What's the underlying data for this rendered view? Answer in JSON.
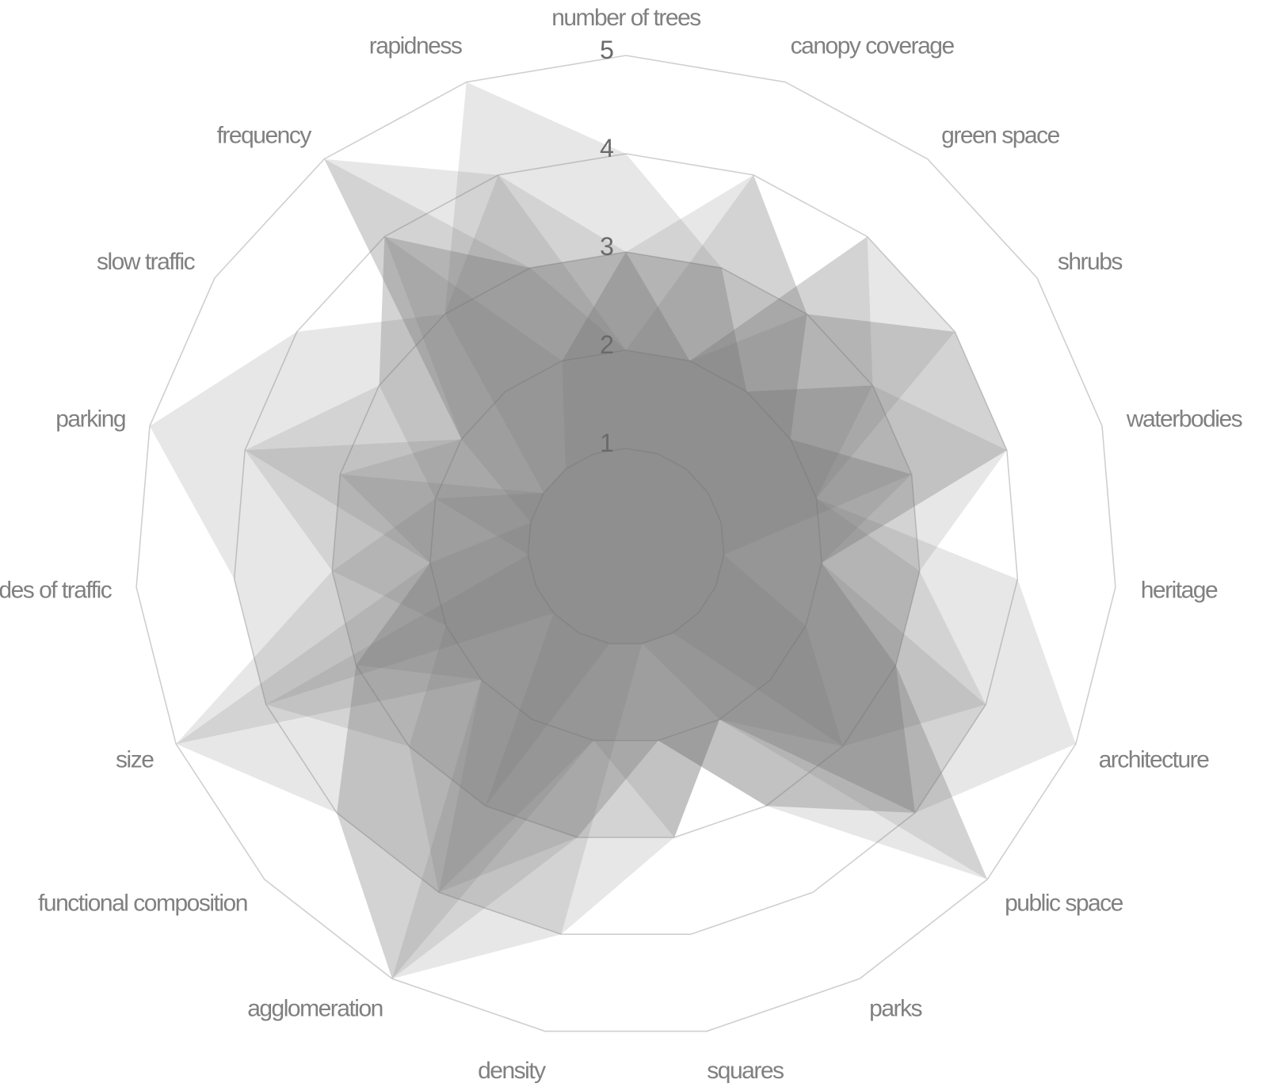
{
  "chart_data": {
    "type": "radar",
    "axes": [
      "number of trees",
      "canopy coverage",
      "green space",
      "shrubs",
      "waterbodies",
      "heritage",
      "architecture",
      "public space",
      "parks",
      "squares",
      "density",
      "agglomeration",
      "functional composition",
      "size",
      "modes of traffic",
      "parking",
      "slow traffic",
      "frequency",
      "rapidness"
    ],
    "rlim": [
      0,
      5
    ],
    "tick_values": [
      1,
      2,
      3,
      4,
      5
    ],
    "tick_labels": [
      "1",
      "2",
      "3",
      "4",
      "5"
    ],
    "grid": true,
    "series": [
      {
        "values": [
          3,
          3,
          3,
          2,
          3,
          1,
          2,
          3,
          1,
          1,
          1,
          3,
          1,
          4,
          1,
          2,
          1,
          1,
          2
        ]
      },
      {
        "values": [
          2,
          2,
          4,
          4,
          4,
          2,
          3,
          4,
          3,
          2,
          2,
          5,
          2,
          3,
          2,
          1,
          2,
          4,
          3
        ]
      },
      {
        "values": [
          4,
          3,
          2,
          3,
          2,
          3,
          4,
          3,
          2,
          3,
          3,
          3,
          3,
          2,
          3,
          3,
          1,
          3,
          5
        ]
      },
      {
        "values": [
          3,
          4,
          3,
          2,
          3,
          3,
          3,
          5,
          2,
          1,
          4,
          4,
          2,
          5,
          2,
          4,
          2,
          5,
          3
        ]
      },
      {
        "values": [
          3,
          2,
          4,
          3,
          4,
          2,
          4,
          4,
          3,
          2,
          3,
          5,
          4,
          3,
          3,
          2,
          3,
          4,
          2
        ]
      },
      {
        "values": [
          2,
          4,
          3,
          4,
          2,
          4,
          5,
          4,
          2,
          3,
          2,
          4,
          3,
          4,
          4,
          5,
          4,
          3,
          4
        ]
      },
      {
        "values": [
          3,
          3,
          2,
          3,
          3,
          2,
          3,
          5,
          3,
          2,
          3,
          4,
          4,
          3,
          2,
          3,
          2,
          5,
          4
        ]
      },
      {
        "values": [
          3,
          2,
          3,
          4,
          4,
          3,
          3,
          4,
          2,
          3,
          4,
          5,
          4,
          5,
          3,
          4,
          3,
          4,
          3
        ]
      }
    ],
    "fill_color": "#6e6e6e",
    "grid_color": "#cfcfcf",
    "label_color": "#808080"
  }
}
